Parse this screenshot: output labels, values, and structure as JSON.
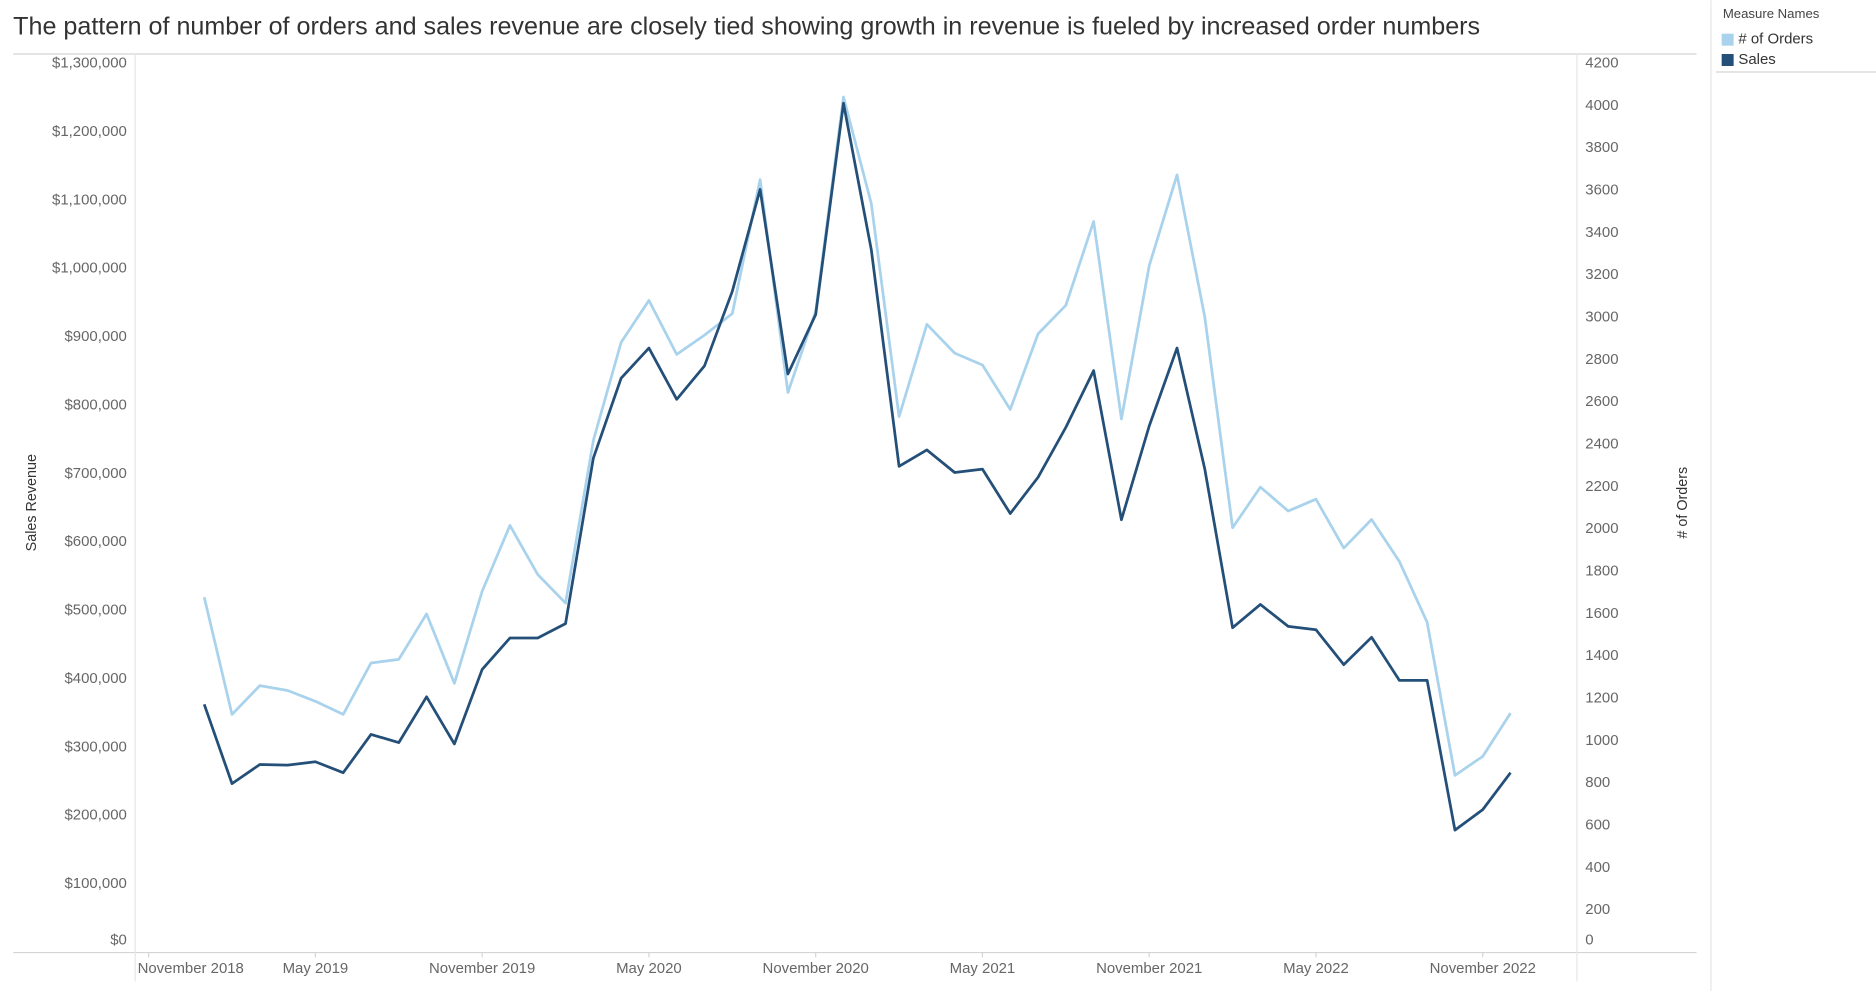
{
  "chart_data": {
    "type": "line",
    "title": "The pattern of number of orders and sales revenue are closely tied showing growth in revenue is fueled by increased order numbers",
    "ylabel": "Sales Revenue",
    "y2label": "# of Orders",
    "legend_title": "Measure Names",
    "legend": "top-right",
    "grid": false,
    "x": [
      "2019-01",
      "2019-02",
      "2019-03",
      "2019-04",
      "2019-05",
      "2019-06",
      "2019-07",
      "2019-08",
      "2019-09",
      "2019-10",
      "2019-11",
      "2019-12",
      "2020-01",
      "2020-02",
      "2020-03",
      "2020-04",
      "2020-05",
      "2020-06",
      "2020-07",
      "2020-08",
      "2020-09",
      "2020-10",
      "2020-11",
      "2020-12",
      "2021-01",
      "2021-02",
      "2021-03",
      "2021-04",
      "2021-05",
      "2021-06",
      "2021-07",
      "2021-08",
      "2021-09",
      "2021-10",
      "2021-11",
      "2021-12",
      "2022-01",
      "2022-02",
      "2022-03",
      "2022-04",
      "2022-05",
      "2022-06",
      "2022-07",
      "2022-08",
      "2022-09",
      "2022-10",
      "2022-11",
      "2022-12"
    ],
    "xlim": [
      "2018-10",
      "2023-02"
    ],
    "xticks": [
      {
        "value": "2018-11",
        "label": "November 2018"
      },
      {
        "value": "2019-05",
        "label": "May 2019"
      },
      {
        "value": "2019-11",
        "label": "November 2019"
      },
      {
        "value": "2020-05",
        "label": "May 2020"
      },
      {
        "value": "2020-11",
        "label": "November 2020"
      },
      {
        "value": "2021-05",
        "label": "May 2021"
      },
      {
        "value": "2021-11",
        "label": "November 2021"
      },
      {
        "value": "2022-05",
        "label": "May 2022"
      },
      {
        "value": "2022-11",
        "label": "November 2022"
      }
    ],
    "ylim": [
      0,
      1300000
    ],
    "yticks": [
      {
        "value": 0,
        "label": "$0"
      },
      {
        "value": 100000,
        "label": "$100,000"
      },
      {
        "value": 200000,
        "label": "$200,000"
      },
      {
        "value": 300000,
        "label": "$300,000"
      },
      {
        "value": 400000,
        "label": "$400,000"
      },
      {
        "value": 500000,
        "label": "$500,000"
      },
      {
        "value": 600000,
        "label": "$600,000"
      },
      {
        "value": 700000,
        "label": "$700,000"
      },
      {
        "value": 800000,
        "label": "$800,000"
      },
      {
        "value": 900000,
        "label": "$900,000"
      },
      {
        "value": 1000000,
        "label": "$1,000,000"
      },
      {
        "value": 1100000,
        "label": "$1,100,000"
      },
      {
        "value": 1200000,
        "label": "$1,200,000"
      },
      {
        "value": 1300000,
        "label": "$1,300,000"
      }
    ],
    "y2lim": [
      0,
      4200
    ],
    "y2ticks": [
      0,
      200,
      400,
      600,
      800,
      1000,
      1200,
      1400,
      1600,
      1800,
      2000,
      2200,
      2400,
      2600,
      2800,
      3000,
      3200,
      3400,
      3600,
      3800,
      4000,
      4200
    ],
    "series": [
      {
        "name": "# of Orders",
        "color": "#a9d3ec",
        "axis": "y2",
        "values": [
          1679,
          1125,
          1261,
          1238,
          1187,
          1125,
          1368,
          1385,
          1600,
          1272,
          1707,
          2018,
          1786,
          1651,
          2419,
          2883,
          3081,
          2826,
          2917,
          3019,
          3652,
          2646,
          3030,
          4042,
          3539,
          2532,
          2968,
          2832,
          2776,
          2566,
          2923,
          3058,
          3454,
          2521,
          3245,
          3674,
          3002,
          2007,
          2199,
          2086,
          2142,
          1911,
          2046,
          1848,
          1560,
          837,
          927,
          1131
        ]
      },
      {
        "name": "Sales",
        "color": "#234f78",
        "axis": "y",
        "values": [
          363000,
          247000,
          275000,
          274000,
          279000,
          263000,
          319000,
          307000,
          374000,
          305000,
          414000,
          460000,
          460000,
          481000,
          723000,
          840000,
          884000,
          809000,
          858000,
          967000,
          1116000,
          846000,
          933000,
          1242000,
          1028000,
          711000,
          735000,
          702000,
          707000,
          642000,
          695000,
          768000,
          851000,
          633000,
          770000,
          884000,
          707000,
          475000,
          509000,
          477000,
          472000,
          421000,
          461000,
          398000,
          398000,
          179000,
          209000,
          263000
        ]
      }
    ]
  }
}
